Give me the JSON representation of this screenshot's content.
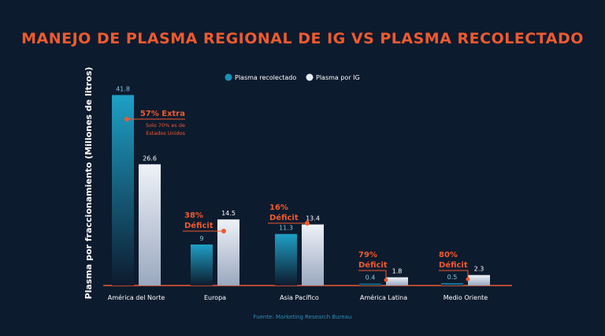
{
  "colors": {
    "background": "#0d1b2e",
    "accent": "#ef5a2f",
    "collected": "#1a93b8",
    "ig": "#e6ebf3",
    "text": "#ffffff",
    "source": "#2a8fb3"
  },
  "chart_data": {
    "type": "bar",
    "title": "MANEJO DE PLASMA REGIONAL DE IG VS PLASMA RECOLECTADO",
    "ylabel": "Plasma por fraccionamiento (Millones de litros)",
    "xlabel": "",
    "ylim": [
      0,
      45
    ],
    "grid": false,
    "legend_position": "top-center",
    "categories": [
      "América del Norte",
      "Europa",
      "Asia Pacífico",
      "América Latina",
      "Medio Oriente"
    ],
    "series": [
      {
        "name": "Plasma recolectado",
        "values": [
          41.8,
          9,
          11.3,
          0.4,
          0.5
        ]
      },
      {
        "name": "Plasma por IG",
        "values": [
          26.6,
          14.5,
          13.4,
          1.8,
          2.3
        ]
      }
    ],
    "value_labels": [
      [
        "41.8",
        "9",
        "11.3",
        "0.4",
        "0.5"
      ],
      [
        "26.6",
        "14.5",
        "13.4",
        "1.8",
        "2.3"
      ]
    ],
    "annotations": [
      {
        "category": "América del Norte",
        "lines": [
          "57% Extra"
        ],
        "note": [
          "Solo 70% es de",
          "Estados Unidos"
        ]
      },
      {
        "category": "Europa",
        "lines": [
          "38%",
          "Déficit"
        ],
        "note": []
      },
      {
        "category": "Asia Pacífico",
        "lines": [
          "16%",
          "Déficit"
        ],
        "note": []
      },
      {
        "category": "América Latina",
        "lines": [
          "79%",
          "Déficit"
        ],
        "note": []
      },
      {
        "category": "Medio Oriente",
        "lines": [
          "80%",
          "Déficit"
        ],
        "note": []
      }
    ]
  },
  "source": "Fuente: Marketing Research Bureau"
}
